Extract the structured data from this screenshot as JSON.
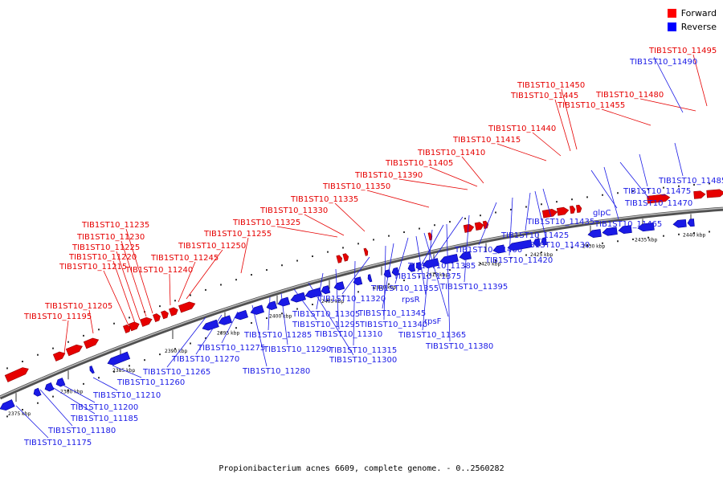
{
  "caption": "Propionibacterium acnes 6609, complete genome. - 0..2560282",
  "legend": [
    {
      "label": "Forward",
      "color": "#ff0000"
    },
    {
      "label": "Reverse",
      "color": "#0000ff"
    }
  ],
  "colors": {
    "forward": "#e60000",
    "reverse": "#1a1ae6",
    "backbone": "#505050"
  },
  "ticks": [
    "2375 kbp",
    "2380 kbp",
    "2385 kbp",
    "2390 kbp",
    "2395 kbp",
    "2400 kbp",
    "2405 kbp",
    "2410 kbp",
    "2415 kbp",
    "2420 kbp",
    "2425 kbp",
    "2430 kbp",
    "2435 kbp",
    "2440 kbp"
  ],
  "forward_genes": [
    "TIB1ST10_11195",
    "TIB1ST10_11205",
    "TIB1ST10_11215",
    "TIB1ST10_11220",
    "TIB1ST10_11225",
    "TIB1ST10_11230",
    "TIB1ST10_11235",
    "TIB1ST10_11240",
    "TIB1ST10_11245",
    "TIB1ST10_11250",
    "TIB1ST10_11255",
    "TIB1ST10_11325",
    "TIB1ST10_11330",
    "TIB1ST10_11335",
    "TIB1ST10_11350",
    "TIB1ST10_11390",
    "TIB1ST10_11405",
    "TIB1ST10_11410",
    "TIB1ST10_11415",
    "TIB1ST10_11440",
    "TIB1ST10_11445",
    "TIB1ST10_11450",
    "TIB1ST10_11455",
    "TIB1ST10_11480",
    "TIB1ST10_11495"
  ],
  "reverse_genes": [
    "TIB1ST10_11175",
    "TIB1ST10_11180",
    "TIB1ST10_11185",
    "TIB1ST10_11200",
    "TIB1ST10_11210",
    "TIB1ST10_11260",
    "TIB1ST10_11265",
    "TIB1ST10_11270",
    "TIB1ST10_11275",
    "TIB1ST10_11280",
    "TIB1ST10_11285",
    "TIB1ST10_11290",
    "TIB1ST10_11295",
    "TIB1ST10_11300",
    "TIB1ST10_11305",
    "TIB1ST10_11310",
    "TIB1ST10_11315",
    "TIB1ST10_11320",
    "TIB1ST10_11340",
    "TIB1ST10_11345",
    "TIB1ST10_11355",
    "rpsR",
    "rpsF",
    "TIB1ST10_11365",
    "TIB1ST10_11375",
    "TIB1ST10_11380",
    "TIB1ST10_11385",
    "TIB1ST10_11395",
    "TIB1ST10_11400",
    "TIB1ST10_11420",
    "TIB1ST10_11425",
    "TIB1ST10_11430",
    "TIB1ST10_11435",
    "glpC",
    "TIB1ST10_11465",
    "TIB1ST10_11470",
    "TIB1ST10_11475",
    "TIB1ST10_11485",
    "TIB1ST10_11490"
  ]
}
